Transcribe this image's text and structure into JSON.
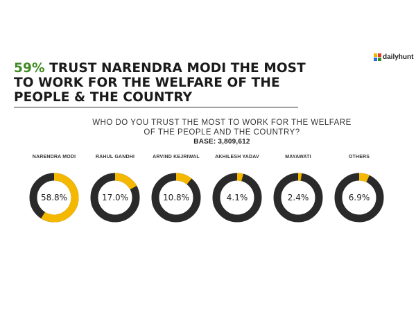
{
  "header": {
    "headline_pct": "59%",
    "headline_rest": "TRUST NARENDRA MODI THE MOST TO WORK FOR THE WELFARE OF THE PEOPLE & THE COUNTRY",
    "brand": "dailyhunt"
  },
  "question": "WHO DO YOU TRUST THE MOST TO WORK FOR THE WELFARE OF THE PEOPLE AND THE COUNTRY?",
  "base_label": "BASE: 3,809,612",
  "colors": {
    "accent": "#f5b800",
    "ring": "#2a2a2a",
    "headline_green": "#3f8a22"
  },
  "chart_data": {
    "type": "pie",
    "subtype": "donut-set",
    "title": "WHO DO YOU TRUST THE MOST TO WORK FOR THE WELFARE OF THE PEOPLE AND THE COUNTRY?",
    "categories": [
      "NARENDRA MODI",
      "RAHUL GANDHI",
      "ARVIND KEJRIWAL",
      "AKHILESH YADAV",
      "MAYAWATI",
      "OTHERS"
    ],
    "values": [
      58.8,
      17.0,
      10.8,
      4.1,
      2.4,
      6.9
    ],
    "labels": [
      "58.8%",
      "17.0%",
      "10.8%",
      "4.1%",
      "2.4%",
      "6.9%"
    ],
    "unit": "%"
  }
}
